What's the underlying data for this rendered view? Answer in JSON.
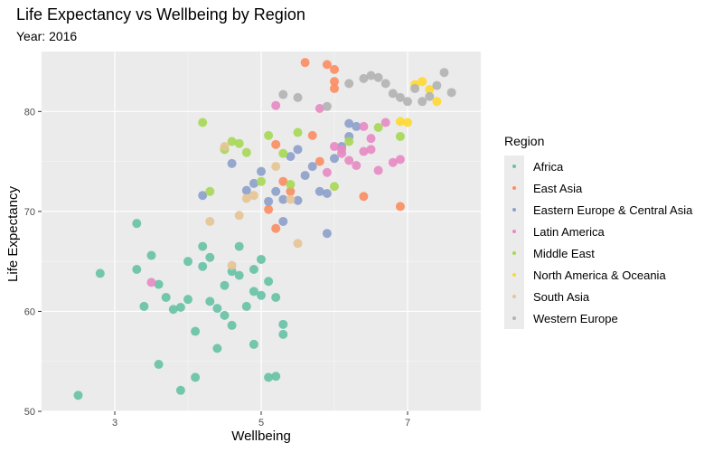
{
  "chart_data": {
    "type": "scatter",
    "title": "Life Expectancy vs Wellbeing by Region",
    "subtitle": "Year: 2016",
    "xlabel": "Wellbeing",
    "ylabel": "Life Expectancy",
    "xlim": [
      2.0,
      8.0
    ],
    "ylim": [
      50,
      86
    ],
    "xticks": [
      3,
      5,
      7
    ],
    "yticks": [
      50,
      60,
      70,
      80
    ],
    "grid": true,
    "legend_title": "Region",
    "legend_position": "right",
    "series": [
      {
        "name": "Africa",
        "color": "#66c2a5",
        "points": [
          [
            2.5,
            51.6
          ],
          [
            2.8,
            63.8
          ],
          [
            3.3,
            64.2
          ],
          [
            3.3,
            68.8
          ],
          [
            3.4,
            60.5
          ],
          [
            3.5,
            65.6
          ],
          [
            3.6,
            62.7
          ],
          [
            3.6,
            54.7
          ],
          [
            3.7,
            61.4
          ],
          [
            3.8,
            60.2
          ],
          [
            3.9,
            60.4
          ],
          [
            3.9,
            52.1
          ],
          [
            4.0,
            61.2
          ],
          [
            4.1,
            58.0
          ],
          [
            4.1,
            53.4
          ],
          [
            4.2,
            64.5
          ],
          [
            4.2,
            66.5
          ],
          [
            4.3,
            61.0
          ],
          [
            4.4,
            60.3
          ],
          [
            4.5,
            59.6
          ],
          [
            4.5,
            62.6
          ],
          [
            4.6,
            58.6
          ],
          [
            4.6,
            64.0
          ],
          [
            4.7,
            63.6
          ],
          [
            4.8,
            60.5
          ],
          [
            4.9,
            56.7
          ],
          [
            4.9,
            64.2
          ],
          [
            5.0,
            65.2
          ],
          [
            5.1,
            63.0
          ],
          [
            5.1,
            53.4
          ],
          [
            5.2,
            61.4
          ],
          [
            5.3,
            58.7
          ],
          [
            5.3,
            57.7
          ],
          [
            4.0,
            65.0
          ],
          [
            4.3,
            65.4
          ],
          [
            4.7,
            66.5
          ],
          [
            4.9,
            62.0
          ],
          [
            4.4,
            56.3
          ],
          [
            5.0,
            61.6
          ],
          [
            5.2,
            53.5
          ]
        ]
      },
      {
        "name": "East Asia",
        "color": "#fc8d62",
        "points": [
          [
            5.9,
            84.7
          ],
          [
            6.0,
            84.2
          ],
          [
            6.0,
            83.0
          ],
          [
            6.0,
            82.3
          ],
          [
            5.6,
            84.9
          ],
          [
            5.2,
            76.7
          ],
          [
            5.3,
            73.0
          ],
          [
            5.4,
            72.0
          ],
          [
            5.1,
            70.2
          ],
          [
            6.4,
            71.5
          ],
          [
            6.9,
            70.5
          ],
          [
            5.7,
            77.6
          ],
          [
            5.8,
            75.0
          ],
          [
            5.2,
            68.3
          ]
        ]
      },
      {
        "name": "Eastern Europe & Central Asia",
        "color": "#8da0cb",
        "points": [
          [
            4.2,
            71.6
          ],
          [
            4.6,
            74.8
          ],
          [
            4.8,
            72.1
          ],
          [
            4.9,
            72.8
          ],
          [
            5.0,
            74.0
          ],
          [
            5.1,
            71.0
          ],
          [
            5.2,
            72.0
          ],
          [
            5.3,
            71.2
          ],
          [
            5.5,
            71.1
          ],
          [
            5.6,
            73.6
          ],
          [
            5.7,
            74.5
          ],
          [
            5.8,
            72.0
          ],
          [
            5.9,
            71.8
          ],
          [
            6.0,
            75.3
          ],
          [
            6.1,
            76.5
          ],
          [
            6.2,
            77.5
          ],
          [
            6.3,
            78.5
          ],
          [
            5.4,
            75.5
          ],
          [
            5.9,
            67.8
          ],
          [
            5.3,
            69.0
          ],
          [
            5.5,
            76.2
          ],
          [
            6.2,
            78.8
          ]
        ]
      },
      {
        "name": "Latin America",
        "color": "#e78ac3",
        "points": [
          [
            3.5,
            62.9
          ],
          [
            5.2,
            80.6
          ],
          [
            5.8,
            80.3
          ],
          [
            6.0,
            76.5
          ],
          [
            6.1,
            76.2
          ],
          [
            6.2,
            75.1
          ],
          [
            6.3,
            74.6
          ],
          [
            6.4,
            76.0
          ],
          [
            6.4,
            78.5
          ],
          [
            6.5,
            76.2
          ],
          [
            6.6,
            74.1
          ],
          [
            6.7,
            78.9
          ],
          [
            6.8,
            74.9
          ],
          [
            6.9,
            75.2
          ],
          [
            5.9,
            73.9
          ],
          [
            6.1,
            75.8
          ],
          [
            6.5,
            77.3
          ]
        ]
      },
      {
        "name": "Middle East",
        "color": "#a6d854",
        "points": [
          [
            4.2,
            78.9
          ],
          [
            4.3,
            72.0
          ],
          [
            4.5,
            76.2
          ],
          [
            4.7,
            76.8
          ],
          [
            4.8,
            75.9
          ],
          [
            5.0,
            73.0
          ],
          [
            5.1,
            77.6
          ],
          [
            5.3,
            75.8
          ],
          [
            5.4,
            72.7
          ],
          [
            6.0,
            72.5
          ],
          [
            6.2,
            77.0
          ],
          [
            6.6,
            78.4
          ],
          [
            6.9,
            77.5
          ],
          [
            4.6,
            77.0
          ],
          [
            5.5,
            77.9
          ]
        ]
      },
      {
        "name": "North America & Oceania",
        "color": "#ffd92f",
        "points": [
          [
            6.9,
            79.0
          ],
          [
            7.0,
            78.9
          ],
          [
            7.1,
            82.7
          ],
          [
            7.2,
            83.0
          ],
          [
            7.3,
            82.2
          ],
          [
            7.4,
            81.0
          ]
        ]
      },
      {
        "name": "South Asia",
        "color": "#e5c494",
        "points": [
          [
            4.3,
            69.0
          ],
          [
            4.5,
            76.5
          ],
          [
            4.6,
            64.6
          ],
          [
            4.7,
            69.6
          ],
          [
            4.9,
            71.6
          ],
          [
            5.2,
            74.5
          ],
          [
            5.4,
            71.2
          ],
          [
            5.5,
            66.8
          ],
          [
            4.8,
            71.3
          ]
        ]
      },
      {
        "name": "Western Europe",
        "color": "#b3b3b3",
        "points": [
          [
            5.3,
            81.7
          ],
          [
            5.5,
            81.4
          ],
          [
            6.2,
            82.8
          ],
          [
            6.4,
            83.3
          ],
          [
            6.5,
            83.6
          ],
          [
            6.6,
            83.4
          ],
          [
            6.8,
            81.8
          ],
          [
            6.9,
            81.4
          ],
          [
            7.0,
            81.0
          ],
          [
            7.1,
            82.3
          ],
          [
            7.2,
            81.0
          ],
          [
            7.3,
            81.5
          ],
          [
            7.4,
            82.6
          ],
          [
            7.5,
            83.9
          ],
          [
            7.6,
            81.9
          ],
          [
            6.7,
            82.8
          ],
          [
            5.9,
            80.5
          ]
        ]
      }
    ]
  }
}
